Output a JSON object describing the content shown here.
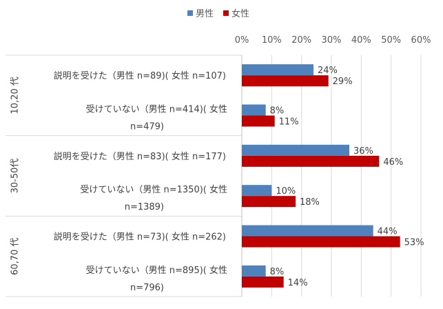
{
  "chart_data": {
    "type": "bar",
    "orientation": "horizontal",
    "legend": {
      "position": "top"
    },
    "series": [
      {
        "name": "男性",
        "color": "#4F81BD",
        "values": [
          24,
          8,
          36,
          10,
          44,
          8
        ]
      },
      {
        "name": "女性",
        "color": "#C00000",
        "values": [
          29,
          11,
          46,
          18,
          53,
          14
        ]
      }
    ],
    "groups": [
      {
        "label": "10,20 代",
        "categories": [
          {
            "lines": [
              "説明を受けた（男性 n=89)( 女性 n=107)"
            ]
          },
          {
            "lines": [
              "受けていない（男性 n=414)( 女性",
              "n=479)"
            ]
          }
        ]
      },
      {
        "label": "30-50代",
        "categories": [
          {
            "lines": [
              "説明を受けた（男性 n=83)( 女性 n=177)"
            ]
          },
          {
            "lines": [
              "受けていない（男性 n=1350)( 女性",
              "n=1389)"
            ]
          }
        ]
      },
      {
        "label": "60,70 代",
        "categories": [
          {
            "lines": [
              "説明を受けた（男性 n=73)( 女性 n=262)"
            ]
          },
          {
            "lines": [
              "受けていない（男性 n=895)( 女性",
              "n=796)"
            ]
          }
        ]
      }
    ],
    "xlim": [
      0,
      60
    ],
    "xticks": [
      "0%",
      "10%",
      "20%",
      "30%",
      "40%",
      "50%",
      "60%"
    ],
    "value_suffix": "%",
    "grid": true
  }
}
